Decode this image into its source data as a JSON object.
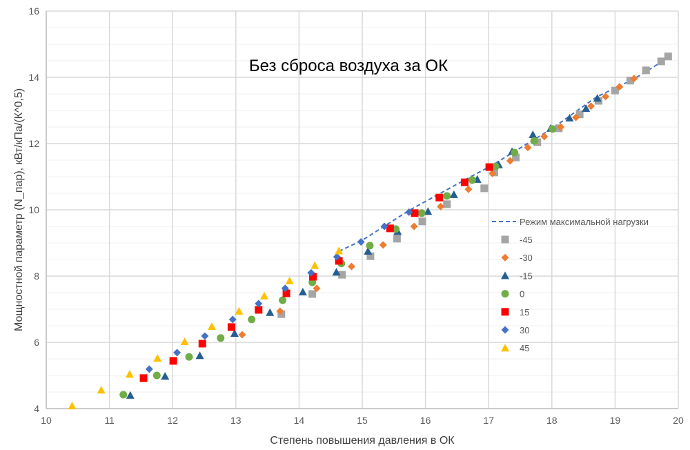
{
  "chart_data": {
    "type": "scatter",
    "title": "Без сброса воздуха за ОК",
    "xlabel": "Степень повышения давления в ОК",
    "ylabel": "Мощностной параметр (N_пар), кВт/кПа/(К^0,5)",
    "xlim": [
      10,
      20
    ],
    "ylim": [
      4,
      16
    ],
    "x_ticks": [
      "10",
      "11",
      "12",
      "13",
      "14",
      "15",
      "16",
      "17",
      "18",
      "19",
      "20"
    ],
    "y_ticks": [
      "4",
      "6",
      "8",
      "10",
      "12",
      "14",
      "16"
    ],
    "grid": true,
    "legend_position": "right",
    "line": {
      "name": "Режим максимальной нагрузки",
      "color": "#4472C4",
      "style": "dashed",
      "x": [
        14.63,
        15.0,
        15.74,
        16.62,
        17.06,
        17.4,
        18.0,
        18.7,
        19.3,
        19.85
      ],
      "y": [
        8.75,
        9.08,
        9.98,
        10.9,
        11.35,
        11.75,
        12.45,
        13.4,
        13.95,
        14.6
      ]
    },
    "series": [
      {
        "name": "-45",
        "marker": "square",
        "color": "#A5A5A5",
        "x": [
          13.72,
          14.21,
          14.68,
          15.13,
          15.55,
          15.95,
          16.34,
          16.93,
          17.09,
          17.43,
          17.77,
          18.11,
          18.44,
          18.74,
          19.0,
          19.24,
          19.49,
          19.73,
          19.84
        ],
        "y": [
          6.85,
          7.46,
          8.04,
          8.6,
          9.13,
          9.65,
          10.17,
          10.65,
          11.13,
          11.58,
          12.04,
          12.46,
          12.88,
          13.29,
          13.6,
          13.9,
          14.21,
          14.48,
          14.63
        ]
      },
      {
        "name": "-30",
        "marker": "diamond",
        "color": "#ED7D31",
        "x": [
          13.1,
          13.7,
          14.28,
          14.83,
          15.33,
          15.82,
          16.24,
          16.68,
          17.06,
          17.34,
          17.62,
          17.88,
          18.14,
          18.38,
          18.62,
          18.85,
          19.07,
          19.3
        ],
        "y": [
          6.23,
          6.94,
          7.63,
          8.29,
          8.94,
          9.5,
          10.1,
          10.62,
          11.1,
          11.48,
          11.88,
          12.21,
          12.5,
          12.79,
          13.13,
          13.42,
          13.71,
          13.96
        ]
      },
      {
        "name": "-15",
        "marker": "triangle",
        "color": "#255E91",
        "x": [
          11.33,
          11.88,
          12.43,
          12.98,
          13.54,
          14.06,
          14.59,
          15.09,
          15.56,
          16.04,
          16.45,
          16.82,
          17.16,
          17.37,
          17.7,
          17.98,
          18.28,
          18.54,
          18.72
        ],
        "y": [
          4.4,
          4.98,
          5.6,
          6.27,
          6.9,
          7.52,
          8.12,
          8.75,
          9.35,
          9.95,
          10.46,
          10.92,
          11.36,
          11.76,
          12.27,
          12.46,
          12.77,
          13.06,
          13.37
        ]
      },
      {
        "name": "0",
        "marker": "circle",
        "color": "#70AD47",
        "x": [
          11.22,
          11.75,
          12.26,
          12.76,
          13.25,
          13.74,
          14.21,
          14.67,
          15.12,
          15.53,
          15.94,
          16.34,
          16.74,
          17.11,
          17.41,
          17.72,
          18.01
        ],
        "y": [
          4.42,
          5.0,
          5.56,
          6.13,
          6.69,
          7.27,
          7.81,
          8.38,
          8.92,
          9.42,
          9.9,
          10.42,
          10.9,
          11.31,
          11.73,
          12.08,
          12.44
        ]
      },
      {
        "name": "15",
        "marker": "square",
        "color": "#FF0000",
        "x": [
          11.54,
          12.01,
          12.47,
          12.93,
          13.36,
          13.8,
          14.22,
          14.63,
          15.44,
          15.83,
          16.22,
          16.62,
          17.01
        ],
        "y": [
          4.92,
          5.44,
          5.96,
          6.46,
          6.98,
          7.48,
          7.98,
          8.46,
          9.44,
          9.9,
          10.37,
          10.83,
          11.29
        ]
      },
      {
        "name": "30",
        "marker": "diamond",
        "color": "#4472C4",
        "x": [
          11.63,
          12.07,
          12.51,
          12.95,
          13.36,
          13.78,
          14.19,
          14.6,
          14.98,
          15.35,
          15.74
        ],
        "y": [
          5.19,
          5.69,
          6.19,
          6.69,
          7.17,
          7.63,
          8.1,
          8.58,
          9.03,
          9.5,
          9.93
        ]
      },
      {
        "name": "45",
        "marker": "triangle",
        "color": "#FFC000",
        "x": [
          10.41,
          10.87,
          11.32,
          11.76,
          12.19,
          12.62,
          13.05,
          13.45,
          13.85,
          14.25,
          14.63
        ],
        "y": [
          4.08,
          4.56,
          5.04,
          5.52,
          6.02,
          6.48,
          6.94,
          7.4,
          7.86,
          8.32,
          8.76
        ]
      }
    ]
  }
}
